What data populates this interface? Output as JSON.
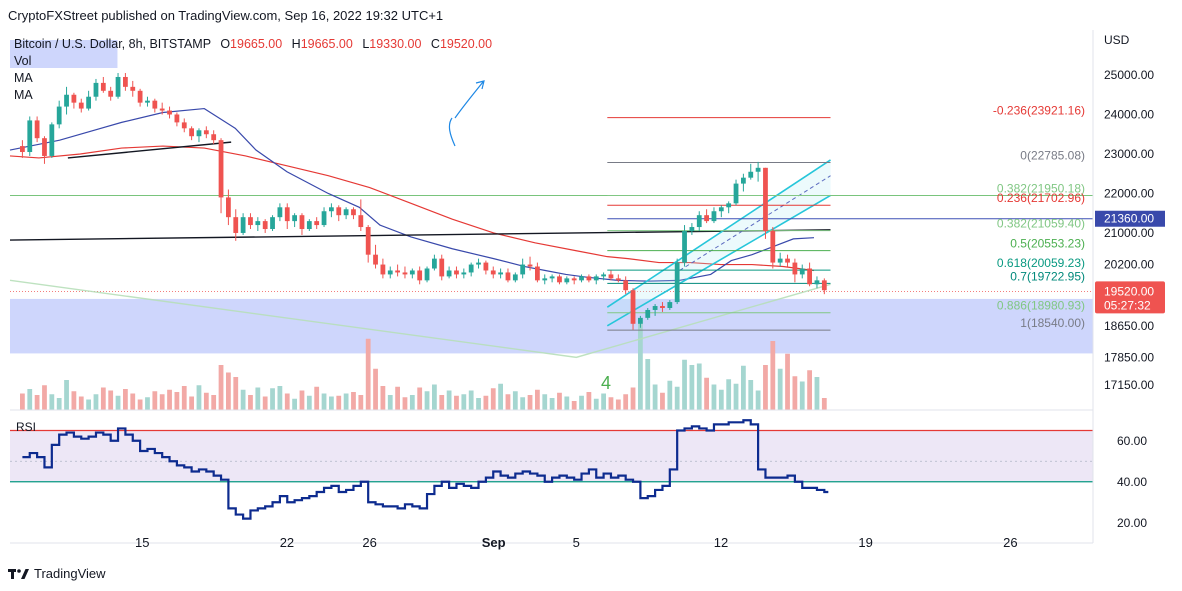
{
  "header": {
    "publisher": "CryptoFXStreet published on TradingView.com, Sep 16, 2022 19:32 UTC+1"
  },
  "legend": {
    "symbol": "Bitcoin / U.S. Dollar, 8h, BITSTAMP",
    "o_label": "O",
    "o_value": "19665.00",
    "h_label": "H",
    "h_value": "19665.00",
    "l_label": "L",
    "l_value": "19330.00",
    "c_label": "C",
    "c_value": "19520.00",
    "vol": "Vol",
    "ma1": "MA",
    "ma2": "MA"
  },
  "rsi_label": "RSI",
  "annotation_4": "4",
  "brand": "TradingView",
  "colors": {
    "up": "#26a69a",
    "down": "#ef5350",
    "ma_fast": "#3949ab",
    "ma_slow": "#e53935",
    "channel": "#26c6da",
    "fib_zone": "#c5cffb",
    "rsi_line": "#0d2b8f",
    "rsi_band": "#ede7f6"
  },
  "chart_data": {
    "type": "candlestick",
    "title": "Bitcoin / U.S. Dollar, 8h, BITSTAMP",
    "currency_label": "USD",
    "price_axis": [
      {
        "label": "25000.00",
        "value": 25000
      },
      {
        "label": "24000.00",
        "value": 24000
      },
      {
        "label": "23000.00",
        "value": 23000
      },
      {
        "label": "22000.00",
        "value": 22000
      },
      {
        "label": "21000.00",
        "value": 21000
      },
      {
        "label": "20200.00",
        "value": 20200
      },
      {
        "label": "18650.00",
        "value": 18650
      },
      {
        "label": "17850.00",
        "value": 17850
      },
      {
        "label": "17150.00",
        "value": 17150
      }
    ],
    "time_axis": [
      {
        "label": "15",
        "day": 15
      },
      {
        "label": "22",
        "day": 22
      },
      {
        "label": "26",
        "day": 26
      },
      {
        "label": "Sep",
        "day": 32
      },
      {
        "label": "5",
        "day": 36
      },
      {
        "label": "12",
        "day": 43
      },
      {
        "label": "19",
        "day": 50
      },
      {
        "label": "26",
        "day": 57
      }
    ],
    "time_start_day": 8.6,
    "candles": [
      [
        23200,
        23350,
        22900,
        23050
      ],
      [
        23050,
        23950,
        22950,
        23850
      ],
      [
        23850,
        23950,
        23300,
        23400
      ],
      [
        23400,
        23450,
        22750,
        22950
      ],
      [
        22950,
        23800,
        22900,
        23750
      ],
      [
        23750,
        24350,
        23650,
        24200
      ],
      [
        24200,
        24700,
        24000,
        24500
      ],
      [
        24500,
        24550,
        24150,
        24300
      ],
      [
        24300,
        24400,
        24050,
        24150
      ],
      [
        24150,
        24600,
        24100,
        24450
      ],
      [
        24450,
        24900,
        24350,
        24800
      ],
      [
        24800,
        24950,
        24550,
        24600
      ],
      [
        24600,
        24700,
        24350,
        24450
      ],
      [
        24450,
        25050,
        24400,
        24950
      ],
      [
        24950,
        25050,
        24600,
        24700
      ],
      [
        24700,
        24850,
        24450,
        24600
      ],
      [
        24600,
        24650,
        24200,
        24300
      ],
      [
        24300,
        24450,
        24200,
        24350
      ],
      [
        24350,
        24400,
        24050,
        24150
      ],
      [
        24150,
        24300,
        24000,
        24100
      ],
      [
        24100,
        24200,
        23900,
        24000
      ],
      [
        24000,
        24050,
        23700,
        23800
      ],
      [
        23800,
        23900,
        23550,
        23650
      ],
      [
        23650,
        23700,
        23350,
        23450
      ],
      [
        23450,
        23650,
        23300,
        23600
      ],
      [
        23600,
        23700,
        23400,
        23500
      ],
      [
        23500,
        23600,
        23250,
        23350
      ],
      [
        23350,
        23400,
        21500,
        21900
      ],
      [
        21900,
        22100,
        21200,
        21400
      ],
      [
        21400,
        21600,
        20800,
        21000
      ],
      [
        21000,
        21500,
        20950,
        21400
      ],
      [
        21400,
        21500,
        21100,
        21200
      ],
      [
        21200,
        21400,
        21050,
        21300
      ],
      [
        21300,
        21350,
        21000,
        21100
      ],
      [
        21100,
        21450,
        21050,
        21400
      ],
      [
        21400,
        21750,
        21300,
        21650
      ],
      [
        21650,
        21750,
        21100,
        21300
      ],
      [
        21300,
        21500,
        21150,
        21450
      ],
      [
        21450,
        21500,
        20950,
        21100
      ],
      [
        21100,
        21350,
        21050,
        21300
      ],
      [
        21300,
        21400,
        21100,
        21200
      ],
      [
        21200,
        21650,
        21150,
        21550
      ],
      [
        21550,
        21750,
        21400,
        21650
      ],
      [
        21650,
        21700,
        21300,
        21450
      ],
      [
        21450,
        21650,
        21350,
        21600
      ],
      [
        21600,
        21650,
        21350,
        21450
      ],
      [
        21450,
        21850,
        21050,
        21150
      ],
      [
        21150,
        21200,
        20250,
        20450
      ],
      [
        20450,
        20700,
        20100,
        20200
      ],
      [
        20200,
        20350,
        19850,
        19950
      ],
      [
        19950,
        20150,
        19850,
        20050
      ],
      [
        20050,
        20200,
        19900,
        20000
      ],
      [
        20000,
        20150,
        19850,
        19950
      ],
      [
        19950,
        20100,
        19850,
        20050
      ],
      [
        20050,
        20150,
        19700,
        19800
      ],
      [
        19800,
        20150,
        19750,
        20100
      ],
      [
        20100,
        20450,
        20050,
        20350
      ],
      [
        20350,
        20450,
        19800,
        19900
      ],
      [
        19900,
        20150,
        19850,
        20050
      ],
      [
        20050,
        20150,
        19850,
        19950
      ],
      [
        19950,
        20100,
        19850,
        20000
      ],
      [
        20000,
        20250,
        19900,
        20200
      ],
      [
        20200,
        20350,
        20100,
        20250
      ],
      [
        20250,
        20300,
        19950,
        20050
      ],
      [
        20050,
        20150,
        19850,
        19950
      ],
      [
        19950,
        20100,
        19850,
        20000
      ],
      [
        20000,
        20100,
        19750,
        19800
      ],
      [
        19800,
        20000,
        19750,
        19950
      ],
      [
        19950,
        20350,
        19850,
        20200
      ],
      [
        20200,
        20400,
        20050,
        20150
      ],
      [
        20150,
        20250,
        19750,
        19800
      ],
      [
        19800,
        19950,
        19700,
        19850
      ],
      [
        19850,
        19950,
        19750,
        19900
      ],
      [
        19900,
        19950,
        19700,
        19750
      ],
      [
        19750,
        19900,
        19700,
        19850
      ],
      [
        19850,
        19900,
        19700,
        19800
      ],
      [
        19800,
        19950,
        19750,
        19900
      ],
      [
        19900,
        19950,
        19750,
        19800
      ],
      [
        19800,
        19950,
        19700,
        19900
      ],
      [
        19900,
        20000,
        19800,
        19950
      ],
      [
        19950,
        20050,
        19800,
        19850
      ],
      [
        19850,
        19950,
        19750,
        19800
      ],
      [
        19800,
        19900,
        19450,
        19550
      ],
      [
        19550,
        19600,
        18550,
        18700
      ],
      [
        18700,
        18900,
        18600,
        18850
      ],
      [
        18850,
        19100,
        18800,
        19050
      ],
      [
        19050,
        19200,
        18900,
        19150
      ],
      [
        19150,
        19250,
        19000,
        19100
      ],
      [
        19100,
        19300,
        19050,
        19250
      ],
      [
        19250,
        20350,
        19200,
        20250
      ],
      [
        20250,
        21200,
        20150,
        21050
      ],
      [
        21050,
        21250,
        20950,
        21150
      ],
      [
        21150,
        21550,
        21050,
        21450
      ],
      [
        21450,
        21600,
        21250,
        21300
      ],
      [
        21300,
        21650,
        21250,
        21550
      ],
      [
        21550,
        21700,
        21400,
        21650
      ],
      [
        21650,
        21800,
        21500,
        21750
      ],
      [
        21750,
        22350,
        21700,
        22250
      ],
      [
        22250,
        22500,
        22050,
        22400
      ],
      [
        22400,
        22750,
        22350,
        22550
      ],
      [
        22550,
        22800,
        22300,
        22650
      ],
      [
        22650,
        22650,
        20850,
        21050
      ],
      [
        21050,
        21150,
        20100,
        20250
      ],
      [
        20250,
        20500,
        20150,
        20350
      ],
      [
        20350,
        20450,
        20150,
        20250
      ],
      [
        20250,
        20350,
        19750,
        19950
      ],
      [
        19950,
        20200,
        19850,
        20100
      ],
      [
        20100,
        20250,
        19650,
        19700
      ],
      [
        19700,
        19900,
        19600,
        19800
      ],
      [
        19800,
        19850,
        19450,
        19550
      ]
    ],
    "volume": [
      22,
      28,
      20,
      33,
      21,
      16,
      40,
      25,
      18,
      14,
      21,
      30,
      26,
      19,
      28,
      22,
      14,
      17,
      25,
      21,
      27,
      24,
      32,
      18,
      33,
      23,
      20,
      60,
      50,
      44,
      27,
      20,
      30,
      18,
      29,
      32,
      22,
      15,
      26,
      19,
      31,
      22,
      18,
      19,
      22,
      24,
      20,
      95,
      55,
      32,
      20,
      31,
      17,
      20,
      30,
      25,
      34,
      20,
      26,
      19,
      21,
      26,
      16,
      19,
      29,
      35,
      21,
      25,
      17,
      20,
      27,
      21,
      16,
      23,
      18,
      12,
      19,
      24,
      15,
      22,
      17,
      14,
      21,
      30,
      120,
      68,
      34,
      23,
      39,
      31,
      67,
      60,
      62,
      43,
      34,
      27,
      41,
      35,
      59,
      40,
      26,
      60,
      92,
      55,
      75,
      45,
      38,
      53,
      44,
      16
    ],
    "ma_fast": [
      [
        8.6,
        23100
      ],
      [
        11,
        23350
      ],
      [
        14,
        23800
      ],
      [
        16,
        24050
      ],
      [
        18,
        24150
      ],
      [
        19.5,
        23650
      ],
      [
        20.5,
        23100
      ],
      [
        22,
        22550
      ],
      [
        24,
        22000
      ],
      [
        25.5,
        21650
      ],
      [
        26.5,
        21200
      ],
      [
        28,
        20900
      ],
      [
        30,
        20600
      ],
      [
        32,
        20350
      ],
      [
        33.5,
        20150
      ],
      [
        34.5,
        20050
      ],
      [
        35.5,
        19950
      ],
      [
        36.5,
        19880
      ],
      [
        38,
        19800
      ],
      [
        39.5,
        19780
      ],
      [
        41,
        19800
      ],
      [
        42.5,
        19950
      ],
      [
        43.5,
        20300
      ],
      [
        44.5,
        20450
      ],
      [
        45.5,
        20650
      ],
      [
        46.5,
        20850
      ],
      [
        47.5,
        20880
      ]
    ],
    "ma_slow": [
      [
        8.6,
        22950
      ],
      [
        10,
        22900
      ],
      [
        12,
        23000
      ],
      [
        14,
        23150
      ],
      [
        16,
        23200
      ],
      [
        18,
        23150
      ],
      [
        20,
        22950
      ],
      [
        22,
        22700
      ],
      [
        24,
        22450
      ],
      [
        26,
        22150
      ],
      [
        28,
        21750
      ],
      [
        30,
        21350
      ],
      [
        32,
        21000
      ],
      [
        34,
        20750
      ],
      [
        36,
        20550
      ],
      [
        37.5,
        20400
      ],
      [
        38.5,
        20350
      ],
      [
        40,
        20250
      ],
      [
        41.5,
        20250
      ],
      [
        43,
        20200
      ],
      [
        44.5,
        20200
      ],
      [
        46,
        20150
      ],
      [
        47.5,
        20050
      ]
    ],
    "fibonacci": {
      "start_day": 37.5,
      "end_day": 48.3,
      "levels": [
        {
          "label": "-0.236(23921.16)",
          "price": 23921.16,
          "color": "#e53935"
        },
        {
          "label": "0(22785.08)",
          "price": 22785.08,
          "color": "#787b86"
        },
        {
          "label": "0.382(21950.18)",
          "price": 21950.18,
          "color": "#81c784"
        },
        {
          "label": "0.236(21702.96)",
          "price": 21702.96,
          "color": "#e53935"
        },
        {
          "label": "0.382(21059.40)",
          "price": 21059.4,
          "color": "#81c784"
        },
        {
          "label": "0.5(20553.23)",
          "price": 20553.23,
          "color": "#4caf50"
        },
        {
          "label": "0.618(20059.23)",
          "price": 20059.23,
          "color": "#089981"
        },
        {
          "label": "0.7(19722.95)",
          "price": 19722.95,
          "color": "#00897b"
        },
        {
          "label": "0.886(18980.93)",
          "price": 18980.93,
          "color": "#81c784"
        },
        {
          "label": "1(18540.00)",
          "price": 18540.0,
          "color": "#787b86"
        }
      ]
    },
    "blue_level": 21360,
    "blue_level_label": "21360.00",
    "current_price": 19520,
    "current_price_label": "19520.00",
    "countdown": "05:27:32",
    "support_line": {
      "from": [
        8.6,
        20820
      ],
      "to": [
        48.3,
        21080
      ]
    },
    "trendline_short": {
      "from": [
        11.4,
        22900
      ],
      "to": [
        19.3,
        23300
      ]
    },
    "green_diagonal": [
      [
        8.6,
        19800
      ],
      [
        36,
        17850
      ],
      [
        48.3,
        19700
      ]
    ],
    "demand_zone": [
      19330,
      17950
    ],
    "rsi": {
      "ylim": [
        15,
        75
      ],
      "upper": 65,
      "lower": 40,
      "ticks": [
        {
          "label": "60.00",
          "value": 60
        },
        {
          "label": "40.00",
          "value": 40
        },
        {
          "label": "20.00",
          "value": 20
        }
      ],
      "values": [
        52,
        54,
        52,
        47,
        58,
        63,
        64,
        62,
        61,
        62,
        64,
        63,
        60,
        66,
        63,
        60,
        55,
        56,
        54,
        52,
        50,
        48,
        47,
        45,
        46,
        45,
        43,
        41,
        27,
        24,
        22,
        26,
        27,
        28,
        30,
        33,
        30,
        31,
        32,
        33,
        35,
        37,
        38,
        35,
        36,
        38,
        40,
        30,
        29,
        28,
        28,
        27,
        29,
        28,
        27,
        34,
        38,
        40,
        37,
        39,
        38,
        37,
        40,
        42,
        45,
        43,
        42,
        44,
        45,
        44,
        43,
        40,
        42,
        43,
        42,
        41,
        44,
        46,
        42,
        44,
        42,
        43,
        41,
        40,
        32,
        33,
        36,
        38,
        46,
        65,
        66,
        67,
        66,
        65,
        68,
        68,
        69,
        69,
        70,
        68,
        46,
        42,
        42,
        42,
        43,
        40,
        37,
        37,
        36,
        35
      ]
    },
    "channel": {
      "lower": [
        [
          37.5,
          18650
        ],
        [
          48.3,
          21950
        ]
      ],
      "upper": [
        [
          37.5,
          19120
        ],
        [
          48.3,
          22850
        ]
      ],
      "mid_dashed": [
        [
          41,
          20050
        ],
        [
          48.3,
          22450
        ]
      ]
    }
  }
}
